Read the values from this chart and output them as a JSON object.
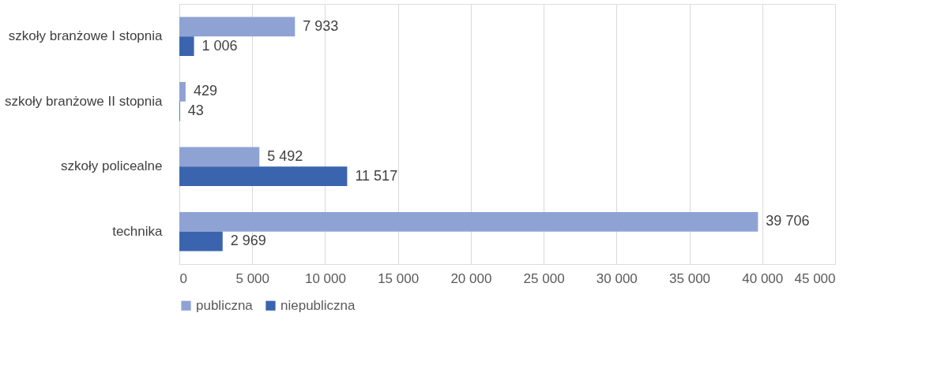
{
  "chart_data": {
    "type": "bar",
    "orientation": "horizontal",
    "categories": [
      "szkoły branżowe I stopnia",
      "szkoły branżowe II stopnia",
      "szkoły policealne",
      "technika"
    ],
    "series": [
      {
        "name": "publiczna",
        "color": "#8fa2d4",
        "values": [
          7933,
          429,
          5492,
          39706
        ],
        "value_labels": [
          "7 933",
          "429",
          "5 492",
          "39 706"
        ]
      },
      {
        "name": "niepubliczna",
        "color": "#3a64ae",
        "values": [
          1006,
          43,
          11517,
          2969
        ],
        "value_labels": [
          "1 006",
          "43",
          "11 517",
          "2 969"
        ]
      }
    ],
    "xlim": [
      0,
      45000
    ],
    "xticks": [
      0,
      {
        "value": 5000,
        "label": "5 000"
      },
      {
        "value": 10000,
        "label": "10 000"
      },
      {
        "value": 15000,
        "label": "15 000"
      },
      {
        "value": 20000,
        "label": "20 000"
      },
      {
        "value": 25000,
        "label": "25 000"
      },
      {
        "value": 30000,
        "label": "30 000"
      },
      {
        "value": 35000,
        "label": "35 000"
      },
      {
        "value": 40000,
        "label": "40 000"
      },
      {
        "value": 45000,
        "label": "45 000"
      }
    ],
    "grid": "x",
    "legend": "bottom"
  }
}
